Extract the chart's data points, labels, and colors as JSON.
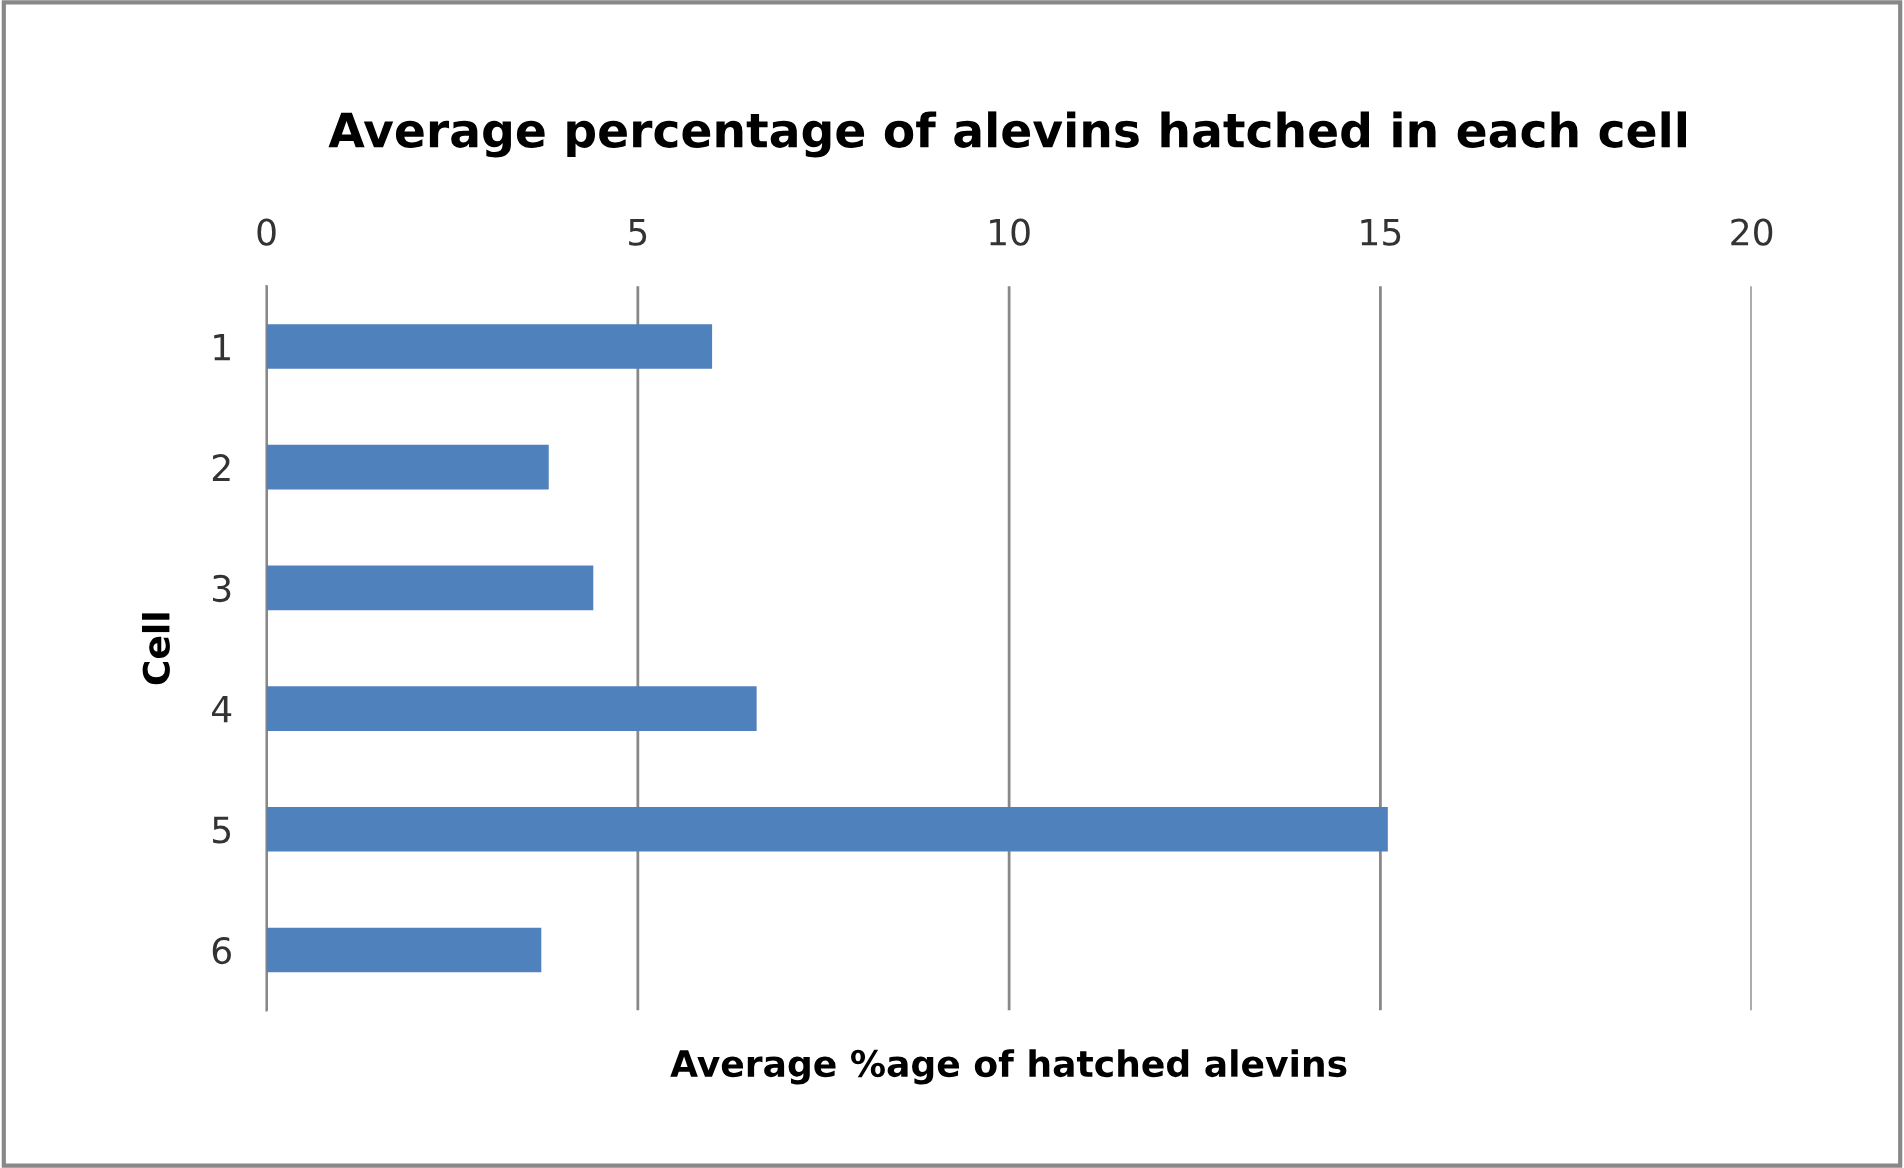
{
  "chart_data": {
    "type": "bar",
    "orientation": "horizontal",
    "title": "Average percentage of alevins hatched in each cell",
    "xlabel": "Average %age of hatched alevins",
    "ylabel": "Cell",
    "categories": [
      "1",
      "2",
      "3",
      "4",
      "5",
      "6"
    ],
    "values": [
      6.0,
      3.8,
      4.4,
      6.6,
      15.1,
      3.7
    ],
    "color": "#4f81bd",
    "xlim": [
      0,
      20
    ],
    "xticks": [
      0,
      5,
      10,
      15,
      20
    ],
    "grid": "x",
    "legend": false
  }
}
